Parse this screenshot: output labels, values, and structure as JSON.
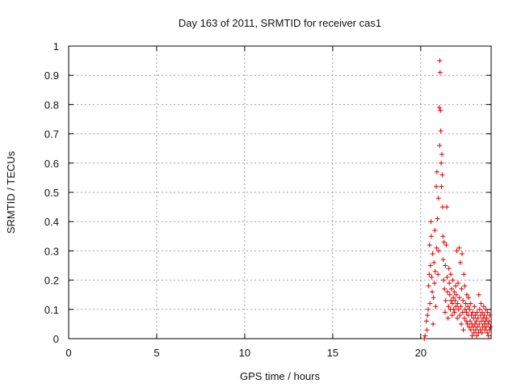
{
  "chart_data": {
    "type": "scatter",
    "title": "Day 163 of 2011, SRMTID for receiver cas1",
    "xlabel": "GPS time / hours",
    "ylabel": "SRMTID / TECUs",
    "xlim": [
      0,
      24
    ],
    "ylim": [
      0,
      1
    ],
    "xticks": [
      0,
      5,
      10,
      15,
      20
    ],
    "yticks": [
      0,
      0.1,
      0.2,
      0.3,
      0.4,
      0.5,
      0.6,
      0.7,
      0.8,
      0.9,
      1
    ],
    "xtick_labels": [
      "0",
      "5",
      "10",
      "15",
      "20"
    ],
    "ytick_labels": [
      "0",
      "0.1",
      "0.2",
      "0.3",
      "0.4",
      "0.5",
      "0.6",
      "0.7",
      "0.8",
      "0.9",
      "1"
    ],
    "grid": true,
    "marker": "+",
    "color": "#dd0000",
    "series": [
      {
        "name": "",
        "points": [
          [
            20.2,
            0.0
          ],
          [
            20.25,
            0.01
          ],
          [
            20.32,
            0.06
          ],
          [
            20.35,
            0.03
          ],
          [
            20.38,
            0.08
          ],
          [
            20.42,
            0.1
          ],
          [
            20.45,
            0.18
          ],
          [
            20.48,
            0.22
          ],
          [
            20.5,
            0.32
          ],
          [
            20.52,
            0.12
          ],
          [
            20.55,
            0.25
          ],
          [
            20.58,
            0.4
          ],
          [
            20.6,
            0.35
          ],
          [
            20.62,
            0.21
          ],
          [
            20.65,
            0.16
          ],
          [
            20.68,
            0.29
          ],
          [
            20.7,
            0.05
          ],
          [
            20.72,
            0.14
          ],
          [
            20.75,
            0.26
          ],
          [
            20.78,
            0.19
          ],
          [
            20.8,
            0.37
          ],
          [
            20.82,
            0.23
          ],
          [
            20.85,
            0.11
          ],
          [
            20.88,
            0.52
          ],
          [
            20.9,
            0.31
          ],
          [
            20.92,
            0.57
          ],
          [
            20.95,
            0.41
          ],
          [
            20.98,
            0.22
          ],
          [
            21.0,
            0.48
          ],
          [
            21.02,
            0.3
          ],
          [
            21.05,
            0.79
          ],
          [
            21.07,
            0.66
          ],
          [
            21.08,
            0.95
          ],
          [
            21.1,
            0.91
          ],
          [
            21.12,
            0.78
          ],
          [
            21.14,
            0.71
          ],
          [
            21.16,
            0.6
          ],
          [
            21.18,
            0.52
          ],
          [
            21.2,
            0.63
          ],
          [
            21.22,
            0.56
          ],
          [
            21.24,
            0.45
          ],
          [
            21.26,
            0.35
          ],
          [
            21.28,
            0.27
          ],
          [
            21.3,
            0.2
          ],
          [
            21.32,
            0.33
          ],
          [
            21.35,
            0.17
          ],
          [
            21.38,
            0.09
          ],
          [
            21.4,
            0.25
          ],
          [
            21.42,
            0.13
          ],
          [
            21.45,
            0.32
          ],
          [
            21.48,
            0.45
          ],
          [
            21.5,
            0.21
          ],
          [
            21.52,
            0.16
          ],
          [
            21.55,
            0.07
          ],
          [
            21.58,
            0.11
          ],
          [
            21.6,
            0.24
          ],
          [
            21.62,
            0.19
          ],
          [
            21.65,
            0.15
          ],
          [
            21.68,
            0.1
          ],
          [
            21.7,
            0.22
          ],
          [
            21.72,
            0.13
          ],
          [
            21.75,
            0.17
          ],
          [
            21.78,
            0.08
          ],
          [
            21.8,
            0.12
          ],
          [
            21.82,
            0.2
          ],
          [
            21.85,
            0.14
          ],
          [
            21.88,
            0.1
          ],
          [
            21.9,
            0.16
          ],
          [
            21.92,
            0.09
          ],
          [
            21.95,
            0.13
          ],
          [
            21.98,
            0.18
          ],
          [
            22.0,
            0.11
          ],
          [
            22.02,
            0.15
          ],
          [
            22.05,
            0.3
          ],
          [
            22.08,
            0.07
          ],
          [
            22.1,
            0.12
          ],
          [
            22.12,
            0.19
          ],
          [
            22.15,
            0.1
          ],
          [
            22.18,
            0.31
          ],
          [
            22.2,
            0.14
          ],
          [
            22.22,
            0.08
          ],
          [
            22.25,
            0.26
          ],
          [
            22.28,
            0.11
          ],
          [
            22.3,
            0.05
          ],
          [
            22.32,
            0.17
          ],
          [
            22.35,
            0.29
          ],
          [
            22.38,
            0.09
          ],
          [
            22.4,
            0.13
          ],
          [
            22.42,
            0.03
          ],
          [
            22.45,
            0.22
          ],
          [
            22.48,
            0.07
          ],
          [
            22.5,
            0.18
          ],
          [
            22.52,
            0.1
          ],
          [
            22.55,
            0.12
          ],
          [
            22.58,
            0.06
          ],
          [
            22.6,
            0.09
          ],
          [
            22.62,
            0.15
          ],
          [
            22.65,
            0.05
          ],
          [
            22.68,
            0.11
          ],
          [
            22.7,
            0.08
          ],
          [
            22.72,
            0.14
          ],
          [
            22.75,
            0.04
          ],
          [
            22.78,
            0.1
          ],
          [
            22.8,
            0.06
          ],
          [
            22.82,
            0.12
          ],
          [
            22.85,
            0.03
          ],
          [
            22.88,
            0.08
          ],
          [
            22.9,
            0.05
          ],
          [
            22.92,
            0.01
          ],
          [
            22.95,
            0.09
          ],
          [
            22.98,
            0.04
          ],
          [
            23.0,
            0.07
          ],
          [
            23.02,
            0.02
          ],
          [
            23.05,
            0.11
          ],
          [
            23.08,
            0.05
          ],
          [
            23.1,
            0.08
          ],
          [
            23.12,
            0.03
          ],
          [
            23.15,
            0.06
          ],
          [
            23.18,
            0.01
          ],
          [
            23.2,
            0.09
          ],
          [
            23.22,
            0.04
          ],
          [
            23.25,
            0.07
          ],
          [
            23.28,
            0.02
          ],
          [
            23.3,
            0.15
          ],
          [
            23.32,
            0.05
          ],
          [
            23.35,
            0.1
          ],
          [
            23.38,
            0.03
          ],
          [
            23.4,
            0.08
          ],
          [
            23.42,
            0.12
          ],
          [
            23.45,
            0.06
          ],
          [
            23.48,
            0.02
          ],
          [
            23.5,
            0.09
          ],
          [
            23.52,
            0.04
          ],
          [
            23.55,
            0.07
          ],
          [
            23.58,
            0.11
          ],
          [
            23.6,
            0.05
          ],
          [
            23.62,
            0.08
          ],
          [
            23.65,
            0.03
          ],
          [
            23.68,
            0.06
          ],
          [
            23.7,
            0.1
          ],
          [
            23.72,
            0.04
          ],
          [
            23.75,
            0.07
          ],
          [
            23.78,
            0.02
          ],
          [
            23.8,
            0.09
          ],
          [
            23.82,
            0.05
          ],
          [
            23.85,
            0.01
          ],
          [
            23.88,
            0.06
          ],
          [
            23.9,
            0.03
          ],
          [
            23.92,
            0.08
          ],
          [
            23.95,
            0.04
          ]
        ]
      }
    ]
  }
}
